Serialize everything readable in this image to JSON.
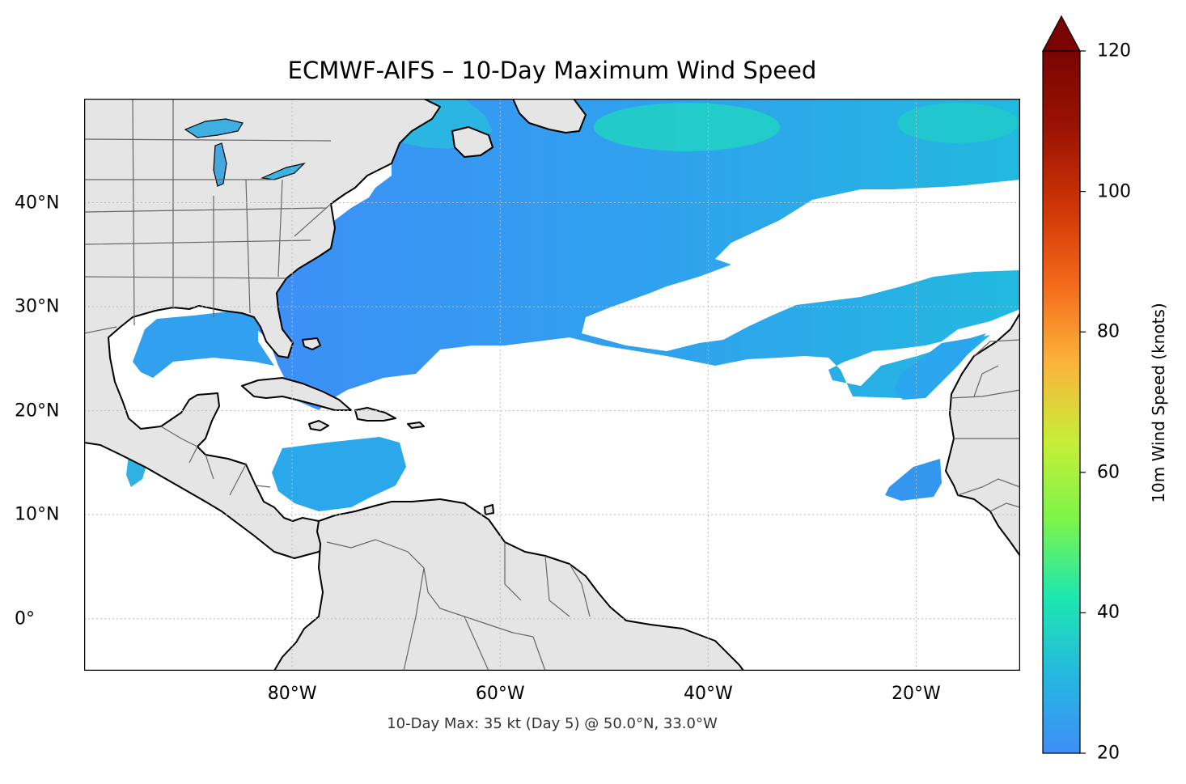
{
  "title": "ECMWF-AIFS – 10-Day Maximum Wind Speed",
  "footnote": "10-Day Max: 35 kt (Day 5) @ 50.0°N, 33.0°W",
  "map": {
    "extent": {
      "lon_min": -100,
      "lon_max": -10,
      "lat_min": -5,
      "lat_max": 50
    },
    "x_ticks": [
      {
        "lon": -80,
        "label": "80°W"
      },
      {
        "lon": -60,
        "label": "60°W"
      },
      {
        "lon": -40,
        "label": "40°W"
      },
      {
        "lon": -20,
        "label": "20°W"
      }
    ],
    "y_ticks": [
      {
        "lat": 40,
        "label": "40°N"
      },
      {
        "lat": 30,
        "label": "30°N"
      },
      {
        "lat": 20,
        "label": "20°N"
      },
      {
        "lat": 10,
        "label": "10°N"
      },
      {
        "lat": 0,
        "label": "0°"
      }
    ],
    "colors": {
      "land": "#e5e5e5",
      "coast": "#000000",
      "borders": "#666666",
      "grid": "#bbbbbb"
    },
    "max_point": {
      "lat": 50.0,
      "lon": -33.0,
      "speed_kt": 35,
      "day": 5
    }
  },
  "colorbar": {
    "label": "10m Wind Speed (knots)",
    "min": 20,
    "max": 120,
    "extend": "max",
    "ticks": [
      {
        "value": 120,
        "label": "120"
      },
      {
        "value": 100,
        "label": "100"
      },
      {
        "value": 80,
        "label": "80"
      },
      {
        "value": 60,
        "label": "60"
      },
      {
        "value": 40,
        "label": "40"
      },
      {
        "value": 20,
        "label": "20"
      }
    ],
    "colormap": [
      "#3e8ef7",
      "#25b8e0",
      "#1de7b0",
      "#7cf54a",
      "#c7ee37",
      "#fbb43a",
      "#f46a1a",
      "#cf3507",
      "#9b1302",
      "#7a0403"
    ]
  }
}
